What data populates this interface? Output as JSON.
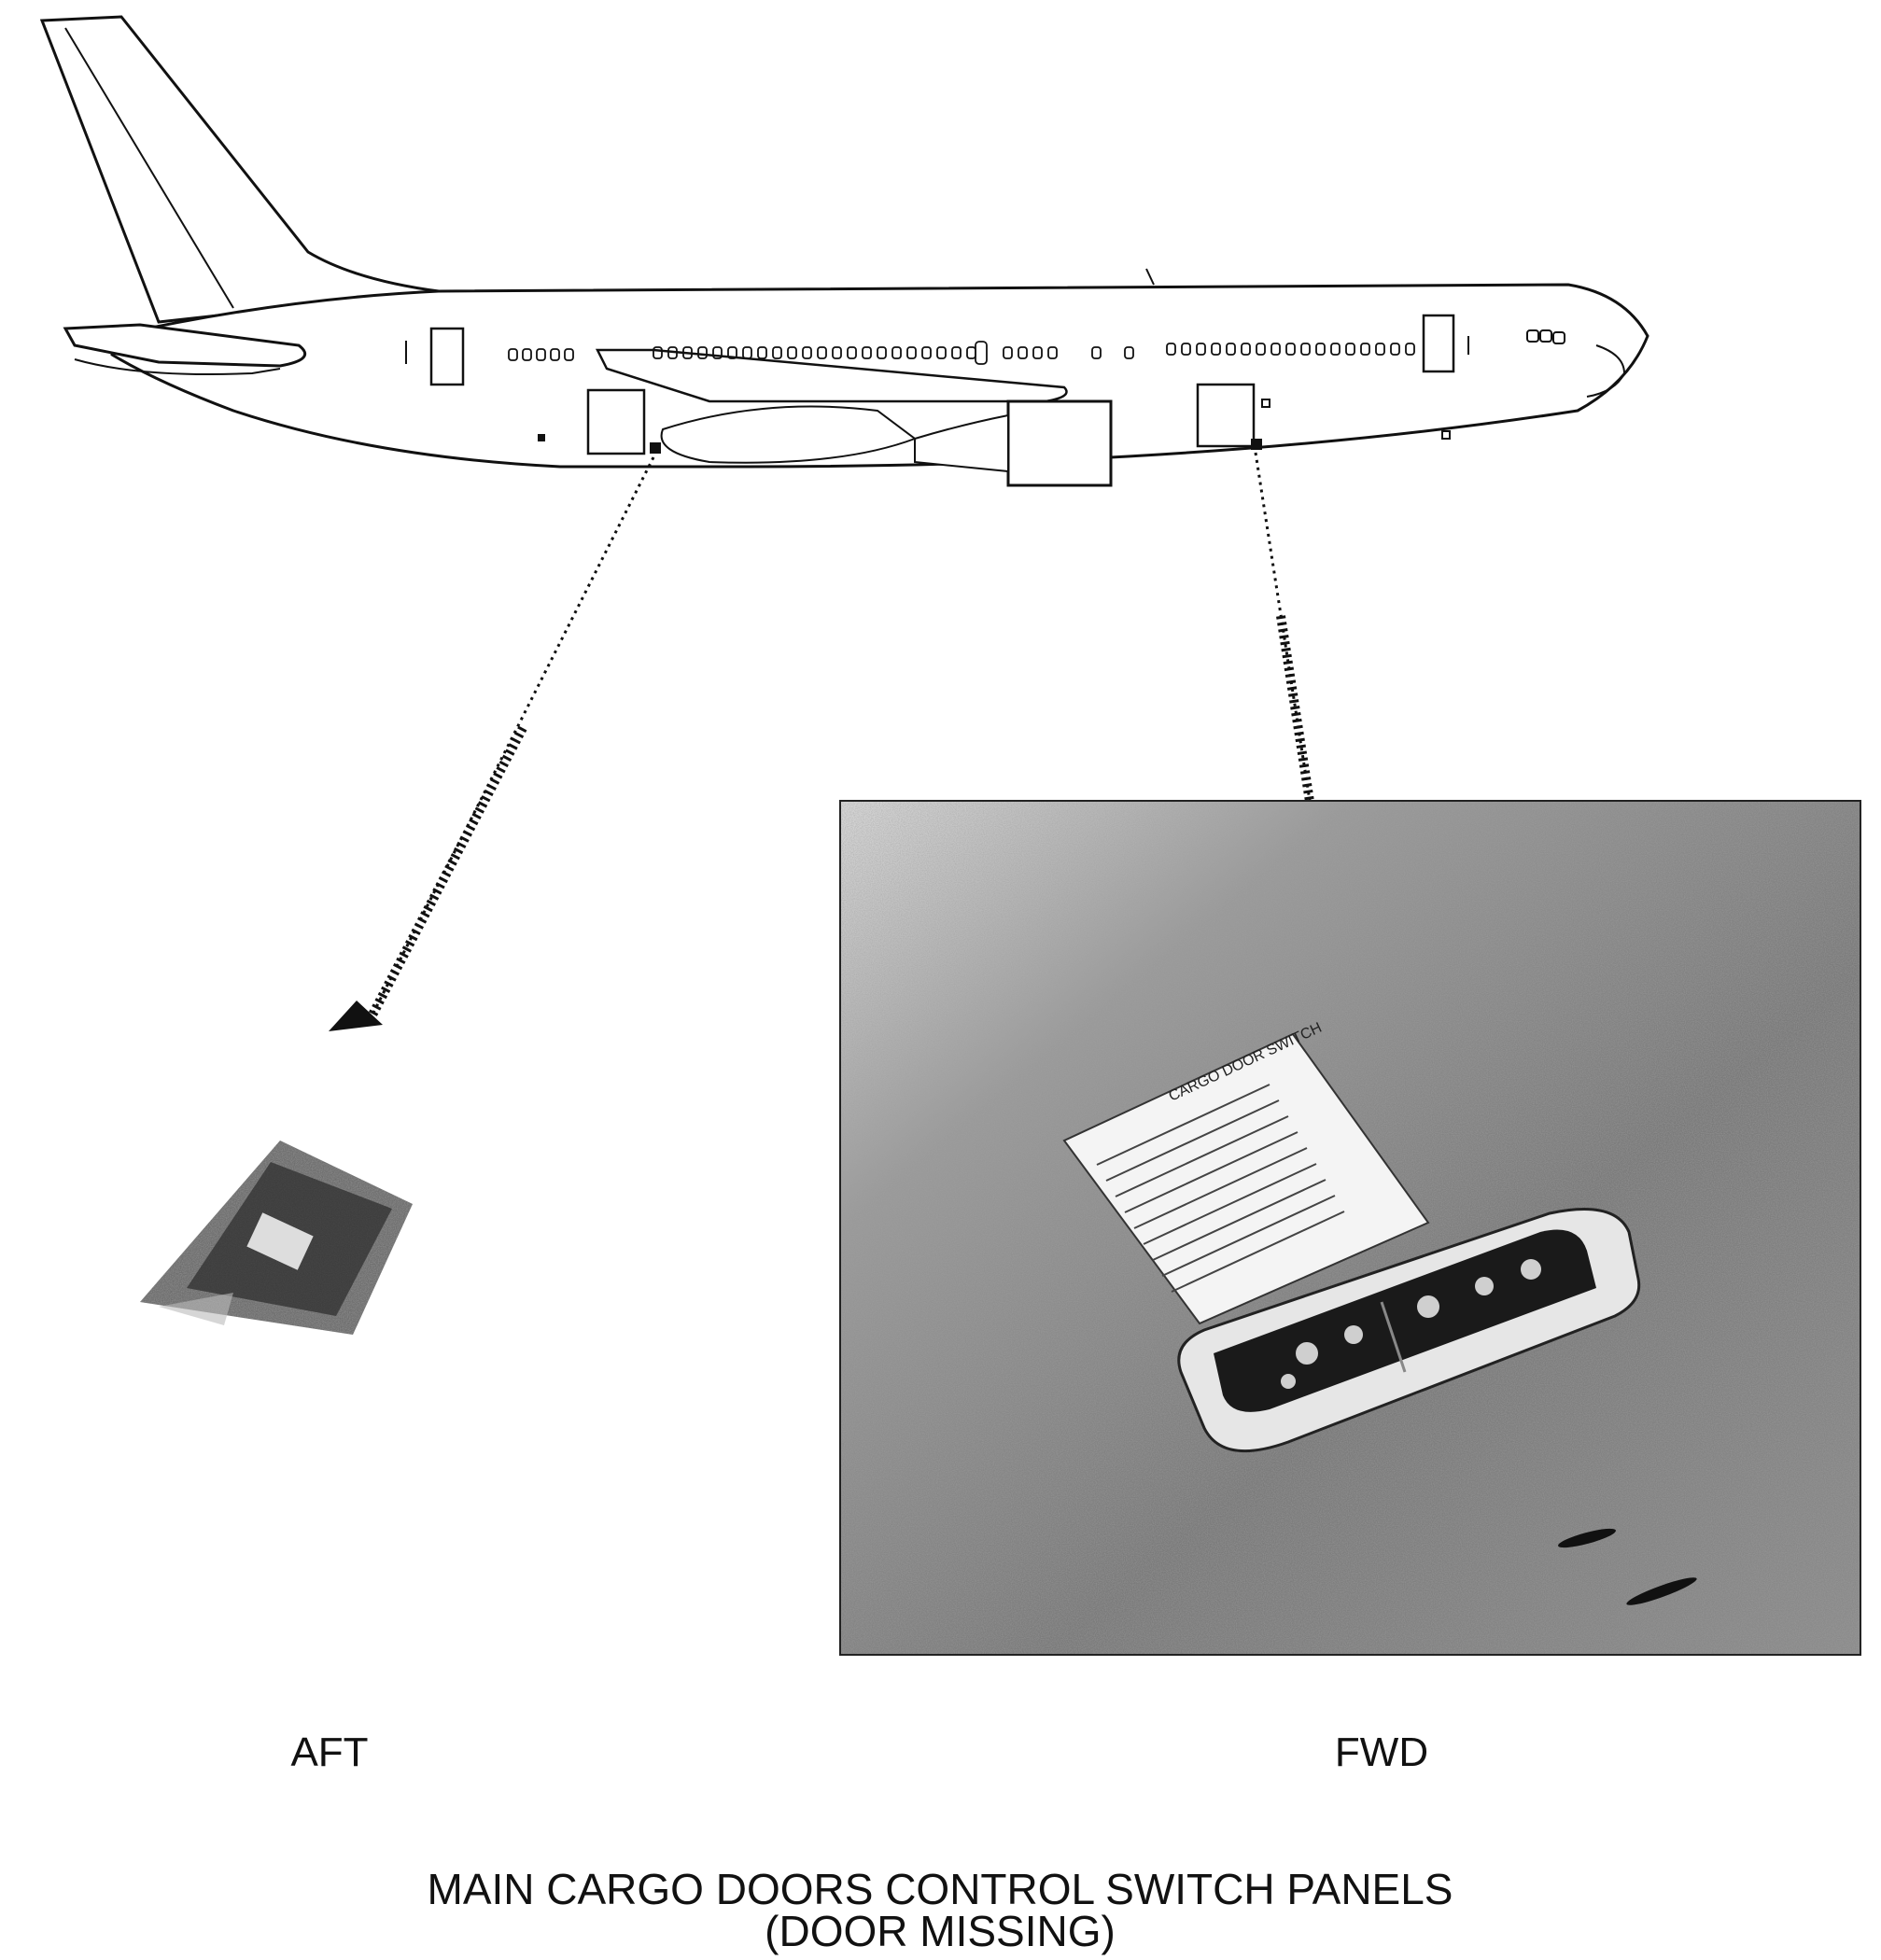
{
  "labels": {
    "aft": "AFT",
    "fwd": "FWD"
  },
  "caption": {
    "line1": "MAIN CARGO DOORS CONTROL SWITCH PANELS",
    "line2": "(DOOR MISSING)"
  },
  "placard": {
    "heading": "CARGO DOOR SWITCH"
  }
}
